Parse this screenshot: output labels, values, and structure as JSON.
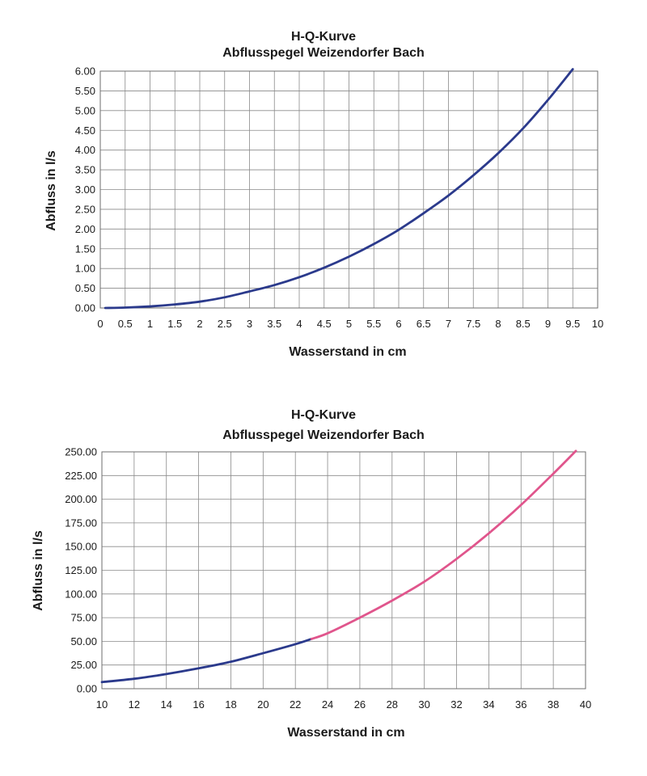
{
  "chart_data": [
    {
      "type": "line",
      "title": "H-Q-Kurve",
      "subtitle": "Abflusspegel Weizendorfer Bach",
      "xlabel": "Wasserstand in cm",
      "ylabel": "Abfluss in l/s",
      "xlim": [
        0,
        10
      ],
      "ylim": [
        0,
        6
      ],
      "xticks": [
        "0",
        "0.5",
        "1",
        "1.5",
        "2",
        "2.5",
        "3",
        "3.5",
        "4",
        "4.5",
        "5",
        "5.5",
        "6",
        "6.5",
        "7",
        "7.5",
        "8",
        "8.5",
        "9",
        "9.5",
        "10"
      ],
      "yticks": [
        "0.00",
        "0.50",
        "1.00",
        "1.50",
        "2.00",
        "2.50",
        "3.00",
        "3.50",
        "4.00",
        "4.50",
        "5.00",
        "5.50",
        "6.00"
      ],
      "grid": true,
      "series": [
        {
          "color": "#2b3a8c",
          "x": [
            0.1,
            0.5,
            1,
            1.5,
            2,
            2.5,
            3,
            3.5,
            4,
            4.5,
            5,
            5.5,
            6,
            6.5,
            7,
            7.5,
            8,
            8.5,
            9,
            9.5
          ],
          "y": [
            0.0,
            0.01,
            0.04,
            0.09,
            0.16,
            0.27,
            0.42,
            0.58,
            0.78,
            1.02,
            1.3,
            1.62,
            1.98,
            2.4,
            2.85,
            3.36,
            3.92,
            4.55,
            5.27,
            6.05
          ]
        }
      ]
    },
    {
      "type": "line",
      "title": "H-Q-Kurve",
      "subtitle": "Abflusspegel Weizendorfer Bach",
      "xlabel": "Wasserstand in cm",
      "ylabel": "Abfluss in l/s",
      "xlim": [
        10,
        40
      ],
      "ylim": [
        0,
        250
      ],
      "xticks": [
        "10",
        "12",
        "14",
        "16",
        "18",
        "20",
        "22",
        "24",
        "26",
        "28",
        "30",
        "32",
        "34",
        "36",
        "38",
        "40"
      ],
      "yticks": [
        "0.00",
        "25.00",
        "50.00",
        "75.00",
        "100.00",
        "125.00",
        "150.00",
        "175.00",
        "200.00",
        "225.00",
        "250.00"
      ],
      "grid": true,
      "series": [
        {
          "color": "#2b3a8c",
          "x": [
            10,
            12,
            14,
            16,
            18,
            20,
            22,
            23
          ],
          "y": [
            7.0,
            10.5,
            15.5,
            21.5,
            28.5,
            37.5,
            47.0,
            52.5
          ]
        },
        {
          "color": "#e0558c",
          "x": [
            23,
            24,
            26,
            28,
            30,
            32,
            34,
            36,
            38,
            39.4
          ],
          "y": [
            52.5,
            58.5,
            75.0,
            93.0,
            113.0,
            137.0,
            164.0,
            194.0,
            227.0,
            251.0
          ]
        }
      ]
    }
  ]
}
